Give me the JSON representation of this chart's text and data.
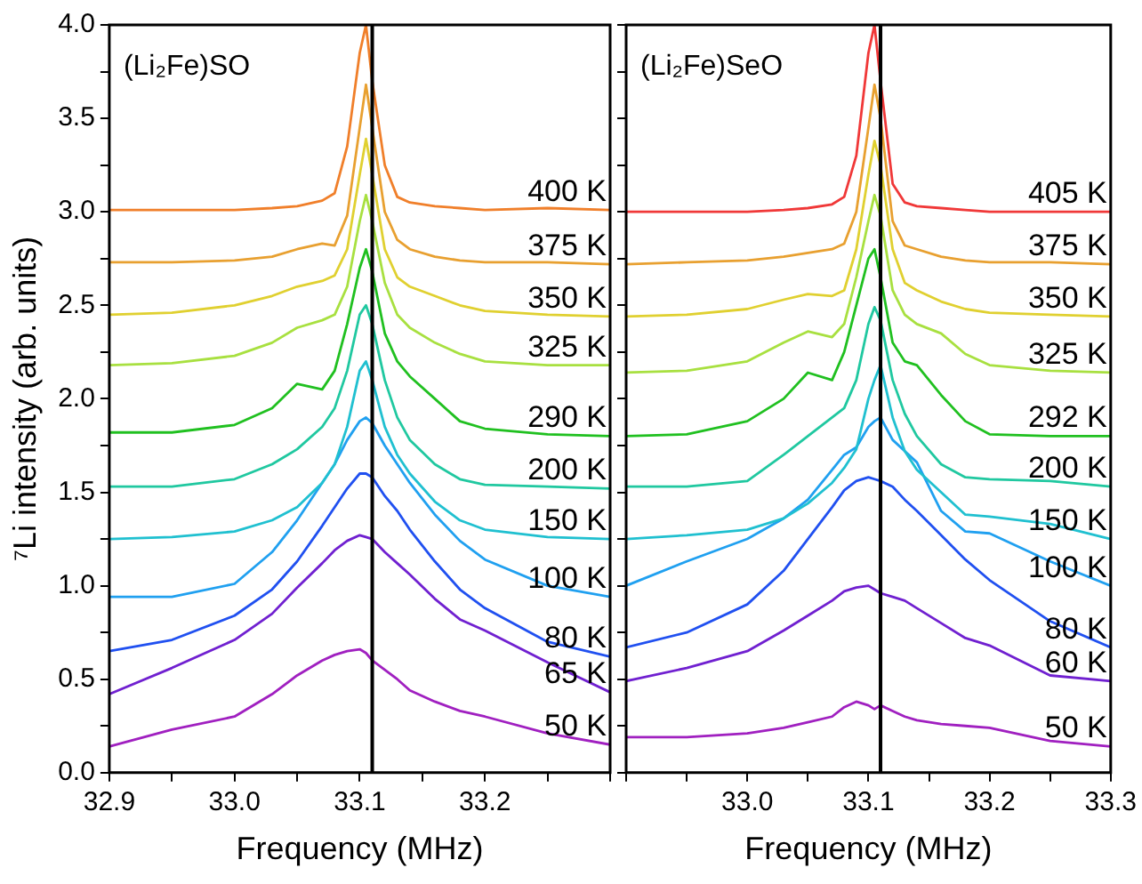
{
  "chart_data": [
    {
      "type": "line",
      "annotations": [
        "(Li₂Fe)SO"
      ],
      "xlabel": "Frequency (MHz)",
      "ylabel": "⁷Li intensity (arb. units)",
      "legend": false,
      "marker": "none",
      "x": [
        32.9,
        32.95,
        33.0,
        33.03,
        33.05,
        33.07,
        33.08,
        33.09,
        33.1,
        33.105,
        33.11,
        33.12,
        33.13,
        33.14,
        33.16,
        33.18,
        33.2,
        33.25,
        33.3
      ],
      "xlim": [
        32.9,
        33.3
      ],
      "xticks": [
        {
          "value": 32.9,
          "label": "32.9"
        },
        {
          "value": 32.95,
          "label": null
        },
        {
          "value": 33.0,
          "label": "33.0"
        },
        {
          "value": 33.05,
          "label": null
        },
        {
          "value": 33.1,
          "label": "33.1"
        },
        {
          "value": 33.15,
          "label": null
        },
        {
          "value": 33.2,
          "label": "33.2"
        },
        {
          "value": 33.25,
          "label": null
        },
        {
          "value": 33.3,
          "label": null
        }
      ],
      "ylim": [
        0,
        4
      ],
      "yticks": [
        {
          "value": 0,
          "label": "0.0"
        },
        {
          "value": 0.25,
          "label": null
        },
        {
          "value": 0.5,
          "label": "0.5"
        },
        {
          "value": 0.75,
          "label": null
        },
        {
          "value": 1,
          "label": "1.0"
        },
        {
          "value": 1.25,
          "label": null
        },
        {
          "value": 1.5,
          "label": "1.5"
        },
        {
          "value": 1.75,
          "label": null
        },
        {
          "value": 2,
          "label": "2.0"
        },
        {
          "value": 2.25,
          "label": null
        },
        {
          "value": 2.5,
          "label": "2.5"
        },
        {
          "value": 2.75,
          "label": null
        },
        {
          "value": 3,
          "label": "3.0"
        },
        {
          "value": 3.25,
          "label": null
        },
        {
          "value": 3.5,
          "label": "3.5"
        },
        {
          "value": 3.75,
          "label": null
        },
        {
          "value": 4,
          "label": "4.0"
        }
      ],
      "ref_lines": [
        {
          "axis": "x",
          "value": 33.11,
          "color": "#000000"
        }
      ],
      "series": [
        {
          "name": "400 K",
          "color": "#f07f2a",
          "values": [
            3.01,
            3.01,
            3.01,
            3.02,
            3.03,
            3.06,
            3.1,
            3.35,
            3.85,
            4.0,
            3.7,
            3.25,
            3.08,
            3.05,
            3.03,
            3.02,
            3.01,
            3.02,
            3.01
          ]
        },
        {
          "name": "375 K",
          "color": "#e8a030",
          "values": [
            2.73,
            2.73,
            2.74,
            2.76,
            2.8,
            2.83,
            2.82,
            2.98,
            3.45,
            3.68,
            3.45,
            3.0,
            2.85,
            2.8,
            2.76,
            2.74,
            2.73,
            2.73,
            2.72
          ]
        },
        {
          "name": "350 K",
          "color": "#e0d030",
          "values": [
            2.45,
            2.46,
            2.5,
            2.55,
            2.6,
            2.63,
            2.66,
            2.8,
            3.2,
            3.39,
            3.2,
            2.8,
            2.65,
            2.6,
            2.55,
            2.5,
            2.47,
            2.45,
            2.44
          ]
        },
        {
          "name": "325 K",
          "color": "#a8e040",
          "values": [
            2.18,
            2.19,
            2.23,
            2.3,
            2.38,
            2.42,
            2.45,
            2.6,
            2.95,
            3.09,
            2.95,
            2.62,
            2.45,
            2.38,
            2.3,
            2.24,
            2.2,
            2.18,
            2.18
          ]
        },
        {
          "name": "290 K",
          "color": "#20c020",
          "values": [
            1.82,
            1.82,
            1.86,
            1.95,
            2.08,
            2.05,
            2.15,
            2.4,
            2.7,
            2.8,
            2.68,
            2.35,
            2.2,
            2.12,
            2.0,
            1.88,
            1.84,
            1.81,
            1.8
          ]
        },
        {
          "name": "200 K",
          "color": "#20c8a0",
          "values": [
            1.53,
            1.53,
            1.57,
            1.65,
            1.73,
            1.85,
            1.95,
            2.15,
            2.45,
            2.5,
            2.4,
            2.1,
            1.9,
            1.78,
            1.65,
            1.57,
            1.54,
            1.53,
            1.52
          ]
        },
        {
          "name": "150 K",
          "color": "#20c0d0",
          "values": [
            1.25,
            1.26,
            1.29,
            1.35,
            1.42,
            1.55,
            1.65,
            1.85,
            2.15,
            2.2,
            2.1,
            1.85,
            1.7,
            1.6,
            1.45,
            1.35,
            1.3,
            1.26,
            1.25
          ]
        },
        {
          "name": "100 K",
          "color": "#20a0f0",
          "values": [
            0.94,
            0.94,
            1.01,
            1.18,
            1.35,
            1.55,
            1.65,
            1.78,
            1.88,
            1.9,
            1.87,
            1.75,
            1.65,
            1.55,
            1.38,
            1.24,
            1.14,
            1.0,
            0.94
          ]
        },
        {
          "name": "80 K",
          "color": "#2050f0",
          "values": [
            0.65,
            0.71,
            0.84,
            0.98,
            1.13,
            1.32,
            1.42,
            1.52,
            1.6,
            1.6,
            1.58,
            1.48,
            1.4,
            1.3,
            1.13,
            0.98,
            0.88,
            0.7,
            0.62
          ]
        },
        {
          "name": "65 K",
          "color": "#7020d0",
          "values": [
            0.42,
            0.56,
            0.71,
            0.85,
            0.99,
            1.12,
            1.19,
            1.24,
            1.27,
            1.26,
            1.25,
            1.18,
            1.12,
            1.06,
            0.93,
            0.82,
            0.76,
            0.59,
            0.43
          ]
        },
        {
          "name": "50 K",
          "color": "#a020c0",
          "values": [
            0.14,
            0.23,
            0.3,
            0.42,
            0.52,
            0.6,
            0.63,
            0.65,
            0.66,
            0.64,
            0.6,
            0.55,
            0.5,
            0.44,
            0.38,
            0.33,
            0.3,
            0.21,
            0.15
          ]
        }
      ]
    },
    {
      "type": "line",
      "annotations": [
        "(Li₂Fe)SeO"
      ],
      "xlabel": "Frequency (MHz)",
      "legend": false,
      "marker": "none",
      "tick_labels": "x",
      "x": [
        32.9,
        32.95,
        33.0,
        33.03,
        33.05,
        33.07,
        33.08,
        33.09,
        33.1,
        33.105,
        33.11,
        33.12,
        33.13,
        33.14,
        33.16,
        33.18,
        33.2,
        33.25,
        33.3
      ],
      "xlim": [
        32.9,
        33.3
      ],
      "xticks": [
        {
          "value": 32.9,
          "label": null
        },
        {
          "value": 32.95,
          "label": null
        },
        {
          "value": 33.0,
          "label": "33.0"
        },
        {
          "value": 33.05,
          "label": null
        },
        {
          "value": 33.1,
          "label": "33.1"
        },
        {
          "value": 33.15,
          "label": null
        },
        {
          "value": 33.2,
          "label": "33.2"
        },
        {
          "value": 33.25,
          "label": null
        },
        {
          "value": 33.3,
          "label": "33.3"
        }
      ],
      "ylim": [
        0,
        4
      ],
      "yticks": [
        {
          "value": 0,
          "label": null
        },
        {
          "value": 0.25,
          "label": null
        },
        {
          "value": 0.5,
          "label": null
        },
        {
          "value": 0.75,
          "label": null
        },
        {
          "value": 1,
          "label": null
        },
        {
          "value": 1.25,
          "label": null
        },
        {
          "value": 1.5,
          "label": null
        },
        {
          "value": 1.75,
          "label": null
        },
        {
          "value": 2,
          "label": null
        },
        {
          "value": 2.25,
          "label": null
        },
        {
          "value": 2.5,
          "label": null
        },
        {
          "value": 2.75,
          "label": null
        },
        {
          "value": 3,
          "label": null
        },
        {
          "value": 3.25,
          "label": null
        },
        {
          "value": 3.5,
          "label": null
        },
        {
          "value": 3.75,
          "label": null
        },
        {
          "value": 4,
          "label": null
        }
      ],
      "ref_lines": [
        {
          "axis": "x",
          "value": 33.11,
          "color": "#000000"
        }
      ],
      "series": [
        {
          "name": "405 K",
          "color": "#f03838",
          "values": [
            3.0,
            3.0,
            3.0,
            3.01,
            3.02,
            3.04,
            3.08,
            3.3,
            3.85,
            4.0,
            3.7,
            3.15,
            3.05,
            3.03,
            3.02,
            3.01,
            3.0,
            3.0,
            3.0
          ]
        },
        {
          "name": "375 K",
          "color": "#e8a030",
          "values": [
            2.72,
            2.73,
            2.74,
            2.76,
            2.78,
            2.8,
            2.83,
            3.0,
            3.45,
            3.68,
            3.5,
            2.95,
            2.82,
            2.8,
            2.76,
            2.74,
            2.73,
            2.73,
            2.72
          ]
        },
        {
          "name": "350 K",
          "color": "#e0d030",
          "values": [
            2.44,
            2.45,
            2.48,
            2.53,
            2.56,
            2.55,
            2.58,
            2.8,
            3.2,
            3.38,
            3.25,
            2.8,
            2.62,
            2.58,
            2.52,
            2.48,
            2.46,
            2.45,
            2.44
          ]
        },
        {
          "name": "325 K",
          "color": "#a8e040",
          "values": [
            2.14,
            2.15,
            2.2,
            2.3,
            2.36,
            2.33,
            2.4,
            2.65,
            2.95,
            3.09,
            2.98,
            2.58,
            2.45,
            2.4,
            2.35,
            2.24,
            2.18,
            2.15,
            2.14
          ]
        },
        {
          "name": "292 K",
          "color": "#20c020",
          "values": [
            1.8,
            1.81,
            1.88,
            2.0,
            2.14,
            2.1,
            2.25,
            2.5,
            2.75,
            2.8,
            2.65,
            2.3,
            2.2,
            2.18,
            2.02,
            1.88,
            1.81,
            1.8,
            1.8
          ]
        },
        {
          "name": "200 K",
          "color": "#20c8a0",
          "values": [
            1.53,
            1.53,
            1.56,
            1.7,
            1.8,
            1.9,
            1.95,
            2.1,
            2.4,
            2.49,
            2.42,
            2.1,
            1.92,
            1.8,
            1.65,
            1.58,
            1.57,
            1.56,
            1.53
          ]
        },
        {
          "name": "150 K",
          "color": "#20c0d0",
          "values": [
            1.25,
            1.27,
            1.3,
            1.36,
            1.44,
            1.55,
            1.63,
            1.73,
            2.0,
            2.1,
            2.18,
            1.9,
            1.72,
            1.62,
            1.5,
            1.38,
            1.37,
            1.33,
            1.25
          ]
        },
        {
          "name": "100 K",
          "color": "#20a0f0",
          "values": [
            1.0,
            1.13,
            1.25,
            1.36,
            1.46,
            1.62,
            1.7,
            1.74,
            1.85,
            1.88,
            1.9,
            1.78,
            1.72,
            1.66,
            1.4,
            1.29,
            1.28,
            1.13,
            1.0
          ]
        },
        {
          "name": "80 K",
          "color": "#2050f0",
          "values": [
            0.67,
            0.75,
            0.9,
            1.08,
            1.25,
            1.42,
            1.51,
            1.56,
            1.58,
            1.57,
            1.56,
            1.53,
            1.46,
            1.4,
            1.27,
            1.14,
            1.03,
            0.81,
            0.67
          ]
        },
        {
          "name": "60 K",
          "color": "#7020d0",
          "values": [
            0.49,
            0.56,
            0.65,
            0.76,
            0.84,
            0.92,
            0.97,
            0.99,
            1.0,
            0.98,
            0.96,
            0.94,
            0.92,
            0.88,
            0.8,
            0.72,
            0.68,
            0.52,
            0.49
          ]
        },
        {
          "name": "50 K",
          "color": "#a020c0",
          "values": [
            0.19,
            0.19,
            0.21,
            0.24,
            0.27,
            0.3,
            0.35,
            0.38,
            0.36,
            0.34,
            0.36,
            0.33,
            0.3,
            0.28,
            0.26,
            0.25,
            0.24,
            0.17,
            0.14
          ]
        }
      ]
    }
  ]
}
